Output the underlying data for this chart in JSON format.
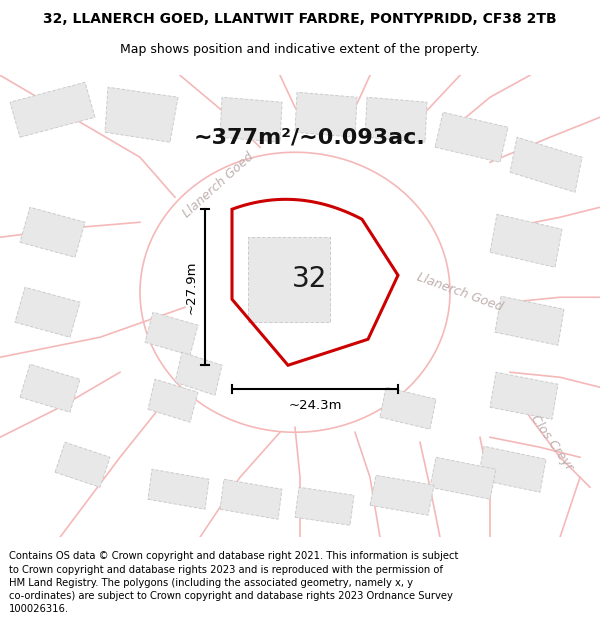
{
  "title_line1": "32, LLANERCH GOED, LLANTWIT FARDRE, PONTYPRIDD, CF38 2TB",
  "title_line2": "Map shows position and indicative extent of the property.",
  "area_label": "~377m²/~0.093ac.",
  "number_label": "32",
  "dim_height": "~27.9m",
  "dim_width": "~24.3m",
  "street_label1": "Llanerch Goed",
  "street_label2": "Llanerch Goed",
  "street_label3": "Clos Creyr",
  "footer": "Contains OS data © Crown copyright and database right 2021. This information is subject\nto Crown copyright and database rights 2023 and is reproduced with the permission of\nHM Land Registry. The polygons (including the associated geometry, namely x, y\nco-ordinates) are subject to Crown copyright and database rights 2023 Ordnance Survey\n100026316.",
  "bg_color": "#ffffff",
  "map_bg": "#ffffff",
  "road_color": "#f5b8b8",
  "building_color": "#e8e8e8",
  "building_edge": "#cccccc",
  "property_edge": "#cc0000",
  "property_fill": "none",
  "dim_color": "#000000",
  "title_fontsize": 10,
  "subtitle_fontsize": 9,
  "area_fontsize": 16,
  "number_fontsize": 20,
  "dim_fontsize": 9.5,
  "street_fontsize": 9,
  "footer_fontsize": 7.2
}
